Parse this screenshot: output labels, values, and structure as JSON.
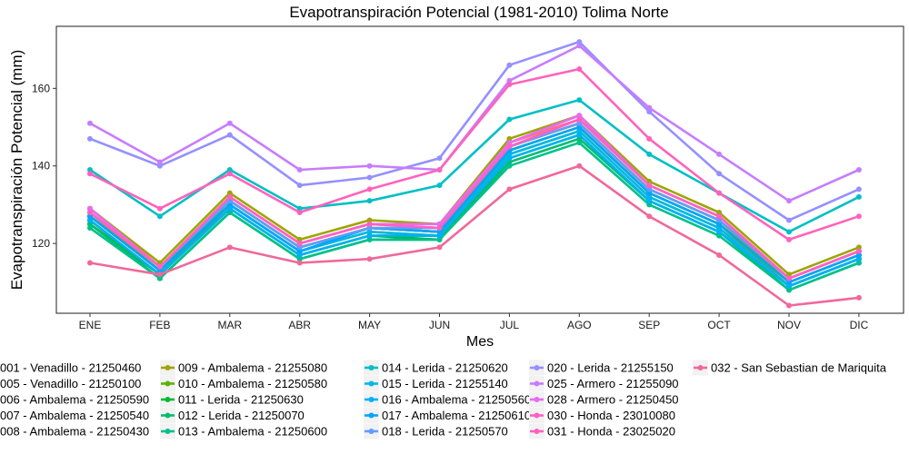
{
  "chart_data": {
    "type": "line",
    "title": "Evapotranspiración Potencial (1981-2010)  Tolima Norte",
    "xlabel": "Mes",
    "ylabel": "Evapotranspiración Potencial  (mm)",
    "categories": [
      "ENE",
      "FEB",
      "MAR",
      "ABR",
      "MAY",
      "JUN",
      "JUL",
      "AGO",
      "SEP",
      "OCT",
      "NOV",
      "DIC"
    ],
    "ylim": [
      102,
      176
    ],
    "yticks": [
      120,
      140,
      160
    ],
    "grid": true,
    "legend_position": "bottom",
    "series": [
      {
        "name": "001 - Venadillo - 21250460",
        "color": "#F8766D",
        "values": [
          129,
          114,
          132,
          120,
          125,
          124,
          146,
          152,
          135,
          127,
          111,
          118
        ]
      },
      {
        "name": "005 - Venadillo - 21250100",
        "color": "#DE8C00",
        "values": [
          128,
          113,
          131,
          119,
          124,
          123,
          145,
          151,
          134,
          126,
          110,
          117
        ]
      },
      {
        "name": "006 - Ambalema - 21250590",
        "color": "#B79F00",
        "values": [
          127,
          113,
          131,
          119,
          124,
          123,
          145,
          151,
          134,
          126,
          110,
          117
        ]
      },
      {
        "name": "007 - Ambalema - 21250540",
        "color": "#7CAE00",
        "values": [
          126,
          112,
          130,
          118,
          123,
          122,
          144,
          150,
          133,
          125,
          109,
          116
        ]
      },
      {
        "name": "008 - Ambalema - 21250430",
        "color": "#00B81F",
        "values": [
          125,
          112,
          129,
          117,
          122,
          122,
          143,
          149,
          132,
          124,
          109,
          116
        ]
      },
      {
        "name": "009 - Ambalema - 21255080",
        "color": "#9DA500",
        "values": [
          129,
          115,
          133,
          121,
          126,
          125,
          147,
          153,
          136,
          128,
          112,
          119
        ]
      },
      {
        "name": "010 - Ambalema - 21250580",
        "color": "#5BB300",
        "values": [
          127,
          113,
          131,
          119,
          124,
          123,
          144,
          150,
          133,
          125,
          110,
          117
        ]
      },
      {
        "name": "011 - Lerida - 21250630",
        "color": "#00BA38",
        "values": [
          126,
          112,
          129,
          117,
          122,
          121,
          142,
          148,
          131,
          123,
          109,
          116
        ]
      },
      {
        "name": "012 - Lerida - 21250070",
        "color": "#00BE6C",
        "values": [
          125,
          111,
          128,
          116,
          121,
          121,
          141,
          147,
          131,
          123,
          108,
          115
        ]
      },
      {
        "name": "013 - Ambalema - 21250600",
        "color": "#00C08B",
        "values": [
          124,
          111,
          128,
          116,
          121,
          121,
          140,
          146,
          130,
          122,
          108,
          115
        ]
      },
      {
        "name": "014 - Lerida - 21250620",
        "color": "#00BFC4",
        "values": [
          139,
          127,
          139,
          129,
          131,
          135,
          152,
          157,
          143,
          133,
          123,
          132
        ]
      },
      {
        "name": "015 - Lerida - 21255140",
        "color": "#00B8E5",
        "values": [
          127,
          113,
          130,
          118,
          123,
          122,
          143,
          149,
          132,
          124,
          109,
          116
        ]
      },
      {
        "name": "016 - Ambalema - 21250560",
        "color": "#00B0F6",
        "values": [
          126,
          112,
          129,
          117,
          122,
          122,
          142,
          148,
          131,
          123,
          109,
          116
        ]
      },
      {
        "name": "017 - Ambalema - 21250610",
        "color": "#00A5FF",
        "values": [
          127,
          113,
          130,
          118,
          124,
          123,
          144,
          150,
          133,
          125,
          110,
          117
        ]
      },
      {
        "name": "018 - Lerida - 21250570",
        "color": "#619CFF",
        "values": [
          128,
          114,
          131,
          119,
          124,
          124,
          145,
          151,
          134,
          126,
          111,
          118
        ]
      },
      {
        "name": "020 - Lerida - 21255150",
        "color": "#9590FF",
        "values": [
          147,
          140,
          148,
          135,
          137,
          142,
          166,
          172,
          154,
          138,
          126,
          134
        ]
      },
      {
        "name": "025 - Armero - 21255090",
        "color": "#C77CFF",
        "values": [
          151,
          141,
          151,
          139,
          140,
          139,
          162,
          171,
          155,
          143,
          131,
          139
        ]
      },
      {
        "name": "028 - Armero - 21250450",
        "color": "#E76BF3",
        "values": [
          129,
          114,
          132,
          120,
          125,
          125,
          146,
          153,
          135,
          127,
          111,
          118
        ]
      },
      {
        "name": "030 - Honda - 23010080",
        "color": "#FF61C3",
        "values": [
          128,
          114,
          132,
          120,
          125,
          124,
          145,
          152,
          135,
          127,
          111,
          118
        ]
      },
      {
        "name": "031 - Honda - 23025020",
        "color": "#FF62BC",
        "values": [
          138,
          129,
          138,
          128,
          134,
          139,
          161,
          165,
          147,
          133,
          121,
          127
        ]
      },
      {
        "name": "032 - San Sebastian de Mariquita",
        "color": "#F0689A",
        "values": [
          115,
          112,
          119,
          115,
          116,
          119,
          134,
          140,
          127,
          117,
          104,
          106
        ]
      }
    ]
  }
}
